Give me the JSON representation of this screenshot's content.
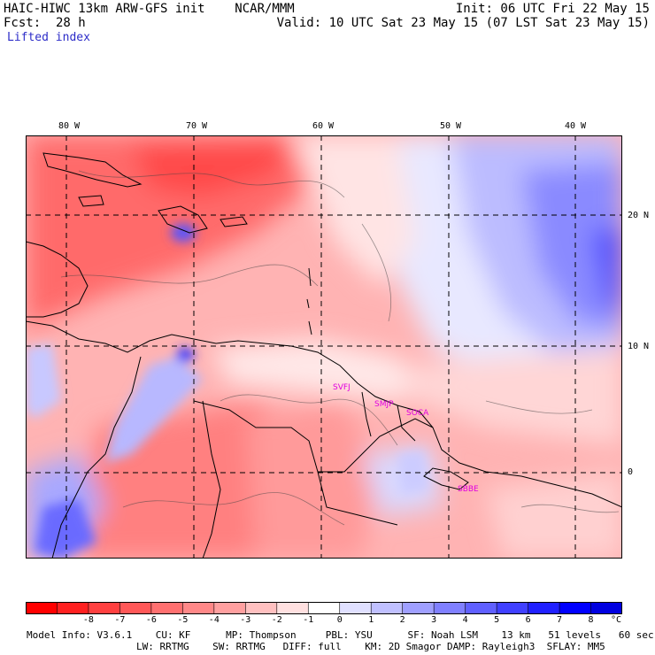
{
  "header": {
    "model_line": "HAIC-HIWC 13km ARW-GFS init    NCAR/MMM",
    "fcst_label": "Fcst:",
    "fcst_value": "28 h",
    "field_name": "Lifted index",
    "init_line": "Init: 06 UTC Fri 22 May 15",
    "valid_line": "Valid: 10 UTC Sat 23 May 15 (07 LST Sat 23 May 15)"
  },
  "map": {
    "lon_labels": [
      "80 W",
      "70 W",
      "60 W",
      "50 W",
      "40 W"
    ],
    "lat_labels": [
      "20 N",
      "10 N",
      "0"
    ],
    "stations": [
      "SVFJ",
      "SMJP",
      "SOCA",
      "SBBE"
    ],
    "colors": {
      "station": "#e000e0",
      "gridline": "#000000",
      "land_border": "#000000"
    }
  },
  "colorbar": {
    "tick_labels": [
      "-8",
      "-7",
      "-6",
      "-5",
      "-4",
      "-3",
      "-2",
      "-1",
      "0",
      "1",
      "2",
      "3",
      "4",
      "5",
      "6",
      "7",
      "8"
    ],
    "unit": "°C",
    "colors": [
      "#ff0000",
      "#ff2020",
      "#ff4040",
      "#ff5858",
      "#ff7070",
      "#ff8888",
      "#ffa0a0",
      "#ffc0c0",
      "#ffe0e0",
      "#ffffff",
      "#e0e0ff",
      "#c0c0ff",
      "#a0a0ff",
      "#8080ff",
      "#6060ff",
      "#4040ff",
      "#2020ff",
      "#0000ff",
      "#0000e0"
    ]
  },
  "footer": {
    "line1": "Model Info: V3.6.1    CU: KF      MP: Thompson     PBL: YSU      SF: Noah LSM    13 km   51 levels   60 sec",
    "line2": "LW: RRTMG    SW: RRTMG   DIFF: full    KM: 2D Smagor DAMP: Rayleigh3  SFLAY: MM5"
  }
}
